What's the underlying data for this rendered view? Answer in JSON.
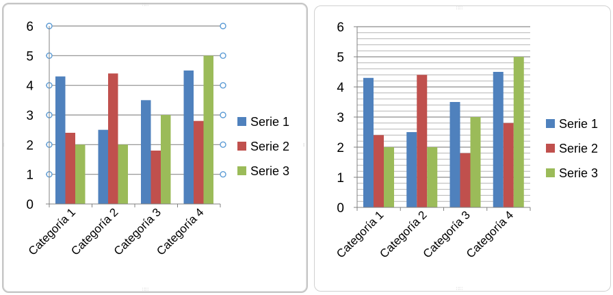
{
  "chart_data": [
    {
      "type": "bar",
      "categories": [
        "Categoría 1",
        "Categoría 2",
        "Categoría 3",
        "Categoría 4"
      ],
      "series": [
        {
          "name": "Serie 1",
          "values": [
            4.3,
            2.5,
            3.5,
            4.5
          ]
        },
        {
          "name": "Serie 2",
          "values": [
            2.4,
            4.4,
            1.8,
            2.8
          ]
        },
        {
          "name": "Serie 3",
          "values": [
            2.0,
            2.0,
            3.0,
            5.0
          ]
        }
      ],
      "y_ticks": [
        "0",
        "1",
        "2",
        "3",
        "4",
        "5",
        "6"
      ],
      "ylim": [
        0,
        6
      ],
      "major_gridlines": true,
      "minor_gridlines": false,
      "gridlines_selected": true,
      "legend_position": "right"
    },
    {
      "type": "bar",
      "categories": [
        "Categoría 1",
        "Categoría 2",
        "Categoría 3",
        "Categoría 4"
      ],
      "series": [
        {
          "name": "Serie 1",
          "values": [
            4.3,
            2.5,
            3.5,
            4.5
          ]
        },
        {
          "name": "Serie 2",
          "values": [
            2.4,
            4.4,
            1.8,
            2.8
          ]
        },
        {
          "name": "Serie 3",
          "values": [
            2.0,
            2.0,
            3.0,
            5.0
          ]
        }
      ],
      "y_ticks": [
        "0",
        "1",
        "2",
        "3",
        "4",
        "5",
        "6"
      ],
      "ylim": [
        0,
        6
      ],
      "major_gridlines": true,
      "minor_gridlines": true,
      "gridlines_selected": false,
      "legend_position": "right"
    }
  ],
  "colors": {
    "series": [
      "#4f81bd",
      "#c0504d",
      "#9bbb59"
    ],
    "gridline": "#8c8c8c",
    "minor_gridline": "#b4b4b4",
    "selection_handle": "#5b9bd5"
  }
}
